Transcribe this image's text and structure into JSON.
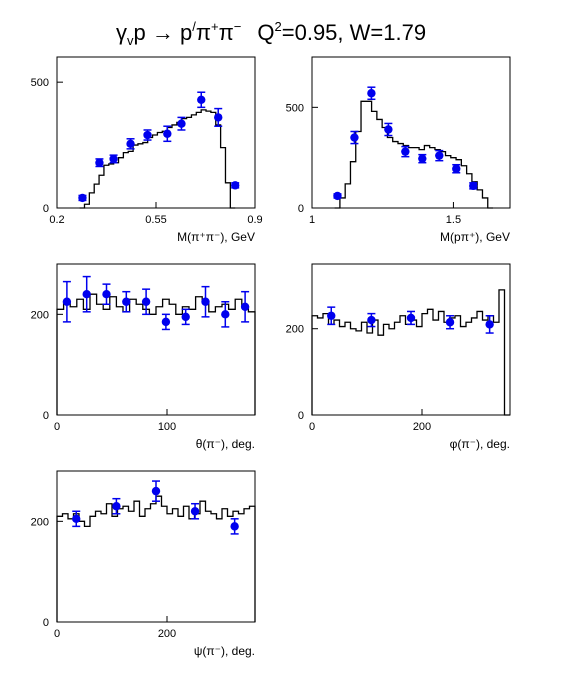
{
  "title": {
    "gamma": "γ",
    "gamma_sub": "v",
    "reaction_lhs": "p → p",
    "reaction_prime": "/",
    "pi": "π",
    "plus": "+",
    "minus": "−",
    "q": "Q",
    "q_sup": "2",
    "kinematics": "=0.95, W=1.79"
  },
  "colors": {
    "data": "#0000ee",
    "mc": "#000000",
    "axis": "#000000"
  },
  "chart_data": [
    {
      "type": "line",
      "name": "m_pipi",
      "xlabel": "M(π⁺π⁻), GeV",
      "xlim": [
        0.2,
        0.9
      ],
      "ylim": [
        0,
        600
      ],
      "xticks": [
        0.2,
        0.55,
        0.9
      ],
      "xtick_labels": [
        "0.2",
        "0.55",
        "0.9"
      ],
      "yticks": [
        0,
        500
      ],
      "ytick_labels": [
        "0",
        "500"
      ],
      "histogram": {
        "x0": 0.28,
        "x1": 0.83,
        "values": [
          0,
          15,
          60,
          95,
          130,
          170,
          175,
          180,
          200,
          220,
          225,
          250,
          255,
          260,
          280,
          290,
          300,
          305,
          320,
          330,
          340,
          355,
          360,
          370,
          380,
          390,
          385,
          380,
          330,
          240,
          100,
          0
        ]
      },
      "points": [
        {
          "x": 0.29,
          "y": 40,
          "err": 10
        },
        {
          "x": 0.35,
          "y": 180,
          "err": 15
        },
        {
          "x": 0.4,
          "y": 195,
          "err": 15
        },
        {
          "x": 0.46,
          "y": 255,
          "err": 20
        },
        {
          "x": 0.52,
          "y": 290,
          "err": 20
        },
        {
          "x": 0.59,
          "y": 295,
          "err": 30
        },
        {
          "x": 0.64,
          "y": 335,
          "err": 25
        },
        {
          "x": 0.71,
          "y": 430,
          "err": 30
        },
        {
          "x": 0.77,
          "y": 360,
          "err": 35
        },
        {
          "x": 0.83,
          "y": 90,
          "err": 10
        }
      ]
    },
    {
      "type": "line",
      "name": "m_ppi",
      "xlabel": "M(pπ⁺), GeV",
      "xlim": [
        1.0,
        1.7
      ],
      "ylim": [
        0,
        750
      ],
      "xticks": [
        1.0,
        1.5
      ],
      "xtick_labels": [
        "1",
        "1.5"
      ],
      "yticks": [
        0,
        500
      ],
      "ytick_labels": [
        "0",
        "500"
      ],
      "histogram": {
        "x0": 1.08,
        "x1": 1.64,
        "values": [
          0,
          50,
          120,
          230,
          380,
          530,
          530,
          480,
          440,
          400,
          350,
          330,
          320,
          310,
          300,
          300,
          290,
          310,
          300,
          290,
          280,
          260,
          250,
          240,
          210,
          170,
          130,
          90,
          50,
          0
        ]
      },
      "points": [
        {
          "x": 1.09,
          "y": 60,
          "err": 10
        },
        {
          "x": 1.15,
          "y": 350,
          "err": 30
        },
        {
          "x": 1.21,
          "y": 570,
          "err": 30
        },
        {
          "x": 1.27,
          "y": 390,
          "err": 30
        },
        {
          "x": 1.33,
          "y": 280,
          "err": 25
        },
        {
          "x": 1.39,
          "y": 245,
          "err": 20
        },
        {
          "x": 1.45,
          "y": 260,
          "err": 25
        },
        {
          "x": 1.51,
          "y": 195,
          "err": 20
        },
        {
          "x": 1.57,
          "y": 110,
          "err": 15
        }
      ]
    },
    {
      "type": "line",
      "name": "theta_pi",
      "xlabel": "θ(π⁻), deg.",
      "xlim": [
        0,
        180
      ],
      "ylim": [
        0,
        300
      ],
      "xticks": [
        0,
        100
      ],
      "xtick_labels": [
        "0",
        "100"
      ],
      "yticks": [
        0,
        200
      ],
      "ytick_labels": [
        "0",
        "200"
      ],
      "histogram": {
        "x0": 0,
        "x1": 180,
        "values": [
          210,
          225,
          215,
          230,
          210,
          240,
          220,
          210,
          235,
          215,
          205,
          230,
          220,
          210,
          200,
          215,
          230,
          220,
          200,
          215,
          210,
          235,
          225,
          205,
          215,
          220,
          210,
          230,
          215,
          205
        ]
      },
      "points": [
        {
          "x": 9,
          "y": 225,
          "err": 40
        },
        {
          "x": 27,
          "y": 240,
          "err": 35
        },
        {
          "x": 45,
          "y": 240,
          "err": 20
        },
        {
          "x": 63,
          "y": 225,
          "err": 20
        },
        {
          "x": 81,
          "y": 225,
          "err": 25
        },
        {
          "x": 99,
          "y": 185,
          "err": 15
        },
        {
          "x": 117,
          "y": 195,
          "err": 15
        },
        {
          "x": 135,
          "y": 225,
          "err": 30
        },
        {
          "x": 153,
          "y": 200,
          "err": 25
        },
        {
          "x": 171,
          "y": 215,
          "err": 30
        }
      ]
    },
    {
      "type": "line",
      "name": "phi_pi",
      "xlabel": "φ(π⁻), deg.",
      "xlim": [
        0,
        360
      ],
      "ylim": [
        0,
        350
      ],
      "xticks": [
        0,
        200
      ],
      "xtick_labels": [
        "0",
        "200"
      ],
      "yticks": [
        0,
        200
      ],
      "ytick_labels": [
        "0",
        "200"
      ],
      "histogram": {
        "x0": 0,
        "x1": 360,
        "values": [
          230,
          225,
          235,
          210,
          220,
          205,
          215,
          200,
          195,
          215,
          190,
          220,
          185,
          210,
          200,
          215,
          230,
          210,
          220,
          205,
          235,
          245,
          220,
          240,
          215,
          225,
          230,
          205,
          215,
          225,
          240,
          220,
          230,
          215,
          290,
          0
        ]
      },
      "points": [
        {
          "x": 35,
          "y": 230,
          "err": 20
        },
        {
          "x": 108,
          "y": 220,
          "err": 15
        },
        {
          "x": 180,
          "y": 225,
          "err": 15
        },
        {
          "x": 251,
          "y": 215,
          "err": 15
        },
        {
          "x": 323,
          "y": 210,
          "err": 20
        }
      ]
    },
    {
      "type": "line",
      "name": "psi_pi",
      "xlabel": "ψ(π⁻), deg.",
      "xlim": [
        0,
        360
      ],
      "ylim": [
        0,
        300
      ],
      "xticks": [
        0,
        200
      ],
      "xtick_labels": [
        "0",
        "200"
      ],
      "yticks": [
        0,
        200
      ],
      "ytick_labels": [
        "0",
        "200"
      ],
      "histogram": {
        "x0": 0,
        "x1": 360,
        "values": [
          210,
          215,
          205,
          215,
          200,
          190,
          210,
          220,
          215,
          235,
          210,
          225,
          230,
          220,
          240,
          210,
          225,
          235,
          250,
          230,
          215,
          225,
          210,
          230,
          205,
          215,
          240,
          220,
          215,
          205,
          225,
          210,
          220,
          215,
          225,
          230
        ]
      },
      "points": [
        {
          "x": 35,
          "y": 205,
          "err": 15
        },
        {
          "x": 108,
          "y": 230,
          "err": 15
        },
        {
          "x": 180,
          "y": 260,
          "err": 20
        },
        {
          "x": 251,
          "y": 220,
          "err": 15
        },
        {
          "x": 323,
          "y": 190,
          "err": 15
        }
      ]
    }
  ]
}
